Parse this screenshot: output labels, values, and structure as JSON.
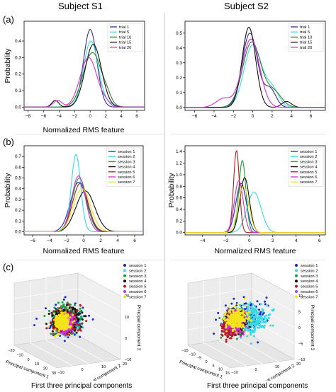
{
  "header": {
    "col1": "Subject S1",
    "col2": "Subject S2"
  },
  "panel_labels": {
    "a": "(a)",
    "b": "(b)",
    "c": "(c)"
  },
  "captions": {
    "s1": "First three principal components",
    "s2": "First three principal components"
  },
  "colors": {
    "trials": [
      "#3a2d8c",
      "#38e0d8",
      "#3c7a2e",
      "#111111",
      "#d12fd6"
    ],
    "sessions": [
      "#1c27c9",
      "#38d8e6",
      "#16a13b",
      "#111111",
      "#b01c1c",
      "#d12fd6",
      "#f2e31c"
    ]
  },
  "chart_data": [
    {
      "id": "a-s1",
      "type": "line",
      "xlabel": "Normalized RMS feature",
      "ylabel": "Probability",
      "xlim": [
        -8.5,
        7
      ],
      "ylim": [
        -0.02,
        0.52
      ],
      "xticks": [
        -8,
        -6,
        -4,
        -2,
        0,
        2,
        4,
        6
      ],
      "yticks": [
        0.0,
        0.1,
        0.2,
        0.3,
        0.4
      ],
      "xtick_labels": [
        "−8",
        "−6",
        "−4",
        "−2",
        "0",
        "2",
        "4",
        "6"
      ],
      "ytick_labels": [
        "0.0",
        "0.1",
        "0.2",
        "0.3",
        "0.4"
      ],
      "legend": "top-right",
      "series": [
        {
          "name": "trial 1",
          "comps": [
            [
              0.47,
              0.0,
              0.85
            ]
          ]
        },
        {
          "name": "trial 5",
          "comps": [
            [
              0.4,
              0.1,
              0.95
            ],
            [
              0.015,
              2.5,
              0.6
            ]
          ]
        },
        {
          "name": "trial 10",
          "comps": [
            [
              0.33,
              0.3,
              1.2
            ],
            [
              0.03,
              2.2,
              0.5
            ]
          ]
        },
        {
          "name": "trial 15",
          "comps": [
            [
              0.38,
              0.4,
              1.05
            ],
            [
              0.04,
              -4.5,
              0.45
            ]
          ]
        },
        {
          "name": "trial 20",
          "comps": [
            [
              0.3,
              -0.2,
              1.1
            ],
            [
              0.04,
              -4.2,
              0.55
            ],
            [
              0.02,
              2.0,
              0.5
            ]
          ]
        }
      ]
    },
    {
      "id": "a-s2",
      "type": "line",
      "xlabel": "",
      "ylabel": "",
      "xlim": [
        -7,
        7.5
      ],
      "ylim": [
        -0.02,
        0.58
      ],
      "xticks": [
        -6,
        -4,
        -2,
        0,
        2,
        4,
        6
      ],
      "yticks": [
        0.0,
        0.1,
        0.2,
        0.3,
        0.4,
        0.5
      ],
      "xtick_labels": [
        "−6",
        "−4",
        "−2",
        "0",
        "2",
        "4",
        "6"
      ],
      "ytick_labels": [
        "0.0",
        "0.1",
        "0.2",
        "0.3",
        "0.4",
        "0.5"
      ],
      "legend": "top-right",
      "series": [
        {
          "name": "trial 1",
          "comps": [
            [
              0.5,
              -0.3,
              0.8
            ],
            [
              0.12,
              1.8,
              0.6
            ]
          ]
        },
        {
          "name": "trial 5",
          "comps": [
            [
              0.42,
              0.0,
              0.9
            ],
            [
              0.12,
              2.0,
              0.7
            ]
          ]
        },
        {
          "name": "trial 10",
          "comps": [
            [
              0.44,
              -0.1,
              0.95
            ],
            [
              0.1,
              2.2,
              0.8
            ]
          ]
        },
        {
          "name": "trial 15",
          "comps": [
            [
              0.54,
              -0.4,
              0.7
            ],
            [
              0.04,
              3.5,
              0.5
            ]
          ]
        },
        {
          "name": "trial 20",
          "comps": [
            [
              0.46,
              -0.2,
              0.9
            ],
            [
              0.06,
              -3.0,
              0.8
            ]
          ]
        }
      ]
    },
    {
      "id": "b-s1",
      "type": "line",
      "xlabel": "Normalized RMS feature",
      "ylabel": "Probability",
      "xlim": [
        -7,
        7
      ],
      "ylim": [
        -0.03,
        0.8
      ],
      "xticks": [
        -6,
        -4,
        -2,
        0,
        2,
        4,
        6
      ],
      "yticks": [
        0.0,
        0.1,
        0.2,
        0.3,
        0.4,
        0.5,
        0.6,
        0.7
      ],
      "xtick_labels": [
        "−6",
        "−4",
        "−2",
        "0",
        "2",
        "4",
        "6"
      ],
      "ytick_labels": [
        "0.0",
        "0.1",
        "0.2",
        "0.3",
        "0.4",
        "0.5",
        "0.6",
        "0.7"
      ],
      "legend": "top-right",
      "series": [
        {
          "name": "session 1",
          "comps": [
            [
              0.46,
              -0.6,
              0.95
            ]
          ]
        },
        {
          "name": "session 2",
          "comps": [
            [
              0.72,
              -0.9,
              0.55
            ]
          ]
        },
        {
          "name": "session 3",
          "comps": [
            [
              0.5,
              -0.5,
              0.85
            ]
          ]
        },
        {
          "name": "session 4",
          "comps": [
            [
              0.38,
              0.2,
              1.1
            ]
          ]
        },
        {
          "name": "session 5",
          "comps": [
            [
              0.45,
              -0.4,
              0.9
            ]
          ]
        },
        {
          "name": "session 6",
          "comps": [
            [
              0.52,
              -0.6,
              0.8
            ]
          ]
        },
        {
          "name": "session 7",
          "comps": [
            [
              0.4,
              -0.2,
              1.0
            ]
          ]
        }
      ]
    },
    {
      "id": "b-s2",
      "type": "line",
      "xlabel": "Normalized RMS feature",
      "ylabel": "Probability",
      "xlim": [
        -5.5,
        6.5
      ],
      "ylim": [
        -0.04,
        1.5
      ],
      "xticks": [
        -4,
        -2,
        0,
        2,
        4,
        6
      ],
      "yticks": [
        0.0,
        0.2,
        0.4,
        0.6,
        0.8,
        1.0,
        1.2,
        1.4
      ],
      "xtick_labels": [
        "−4",
        "−2",
        "0",
        "2",
        "4",
        "6"
      ],
      "ytick_labels": [
        "0.0",
        "0.2",
        "0.4",
        "0.6",
        "0.8",
        "1.0",
        "1.2",
        "1.4"
      ],
      "legend": "top-right",
      "series": [
        {
          "name": "session 1",
          "comps": [
            [
              0.85,
              -0.7,
              0.45
            ]
          ]
        },
        {
          "name": "session 2",
          "comps": [
            [
              0.7,
              0.4,
              0.6
            ]
          ]
        },
        {
          "name": "session 3",
          "comps": [
            [
              1.25,
              -0.6,
              0.3
            ]
          ]
        },
        {
          "name": "session 4",
          "comps": [
            [
              0.95,
              -0.4,
              0.4
            ]
          ]
        },
        {
          "name": "session 5",
          "comps": [
            [
              1.42,
              -1.1,
              0.25
            ]
          ]
        },
        {
          "name": "session 6",
          "comps": [
            [
              0.9,
              -0.9,
              0.38
            ]
          ]
        },
        {
          "name": "session 7",
          "comps": [
            [
              0.8,
              -0.5,
              0.45
            ]
          ]
        }
      ]
    },
    {
      "id": "c-s1",
      "type": "scatter",
      "subtype": "3d-scatter",
      "axis_labels": {
        "x": "Principal component 1",
        "y": "Principal component 2",
        "z": "Principal component 3"
      },
      "xticks": [
        "−20",
        "−10",
        "0",
        "10",
        "20",
        "30"
      ],
      "yticks": [
        "−10",
        "0",
        "10",
        "20"
      ],
      "zticks": [
        "−10",
        "0",
        "10",
        "20"
      ],
      "legend": "top-right",
      "series": [
        {
          "name": "session 1",
          "center": [
            0,
            0,
            0
          ],
          "spread": [
            8,
            6,
            6
          ]
        },
        {
          "name": "session 2",
          "center": [
            2,
            2,
            0
          ],
          "spread": [
            7,
            5,
            5
          ]
        },
        {
          "name": "session 3",
          "center": [
            0,
            0,
            2
          ],
          "spread": [
            7,
            5,
            6
          ]
        },
        {
          "name": "session 4",
          "center": [
            1,
            0,
            1
          ],
          "spread": [
            7,
            5,
            5
          ]
        },
        {
          "name": "session 5",
          "center": [
            0,
            1,
            0
          ],
          "spread": [
            6,
            5,
            5
          ]
        },
        {
          "name": "session 6",
          "center": [
            0,
            0,
            -3
          ],
          "spread": [
            4,
            3,
            4
          ]
        },
        {
          "name": "session 7",
          "center": [
            -4,
            0,
            0
          ],
          "spread": [
            4,
            3,
            4
          ]
        }
      ]
    },
    {
      "id": "c-s2",
      "type": "scatter",
      "subtype": "3d-scatter",
      "axis_labels": {
        "x": "Principal component 1",
        "y": "Principal component 2",
        "z": "Principal component 3"
      },
      "xticks": [
        "−15",
        "−10",
        "−5",
        "0",
        "5",
        "10",
        "15"
      ],
      "yticks": [
        "−10",
        "0",
        "10",
        "20"
      ],
      "zticks": [
        "−10",
        "−5",
        "0",
        "5",
        "10"
      ],
      "legend": "top-right",
      "series": [
        {
          "name": "session 1",
          "center": [
            4,
            0,
            2
          ],
          "spread": [
            7,
            5,
            4
          ]
        },
        {
          "name": "session 2",
          "center": [
            8,
            2,
            0
          ],
          "spread": [
            6,
            5,
            4
          ]
        },
        {
          "name": "session 3",
          "center": [
            -2,
            -2,
            -2
          ],
          "spread": [
            3,
            3,
            3
          ]
        },
        {
          "name": "session 4",
          "center": [
            0,
            -3,
            -1
          ],
          "spread": [
            3,
            3,
            3
          ]
        },
        {
          "name": "session 5",
          "center": [
            -5,
            -2,
            -3
          ],
          "spread": [
            3,
            2,
            3
          ]
        },
        {
          "name": "session 6",
          "center": [
            -3,
            0,
            0
          ],
          "spread": [
            3,
            3,
            3
          ]
        },
        {
          "name": "session 7",
          "center": [
            -2,
            0,
            2
          ],
          "spread": [
            4,
            3,
            3
          ]
        }
      ]
    }
  ]
}
